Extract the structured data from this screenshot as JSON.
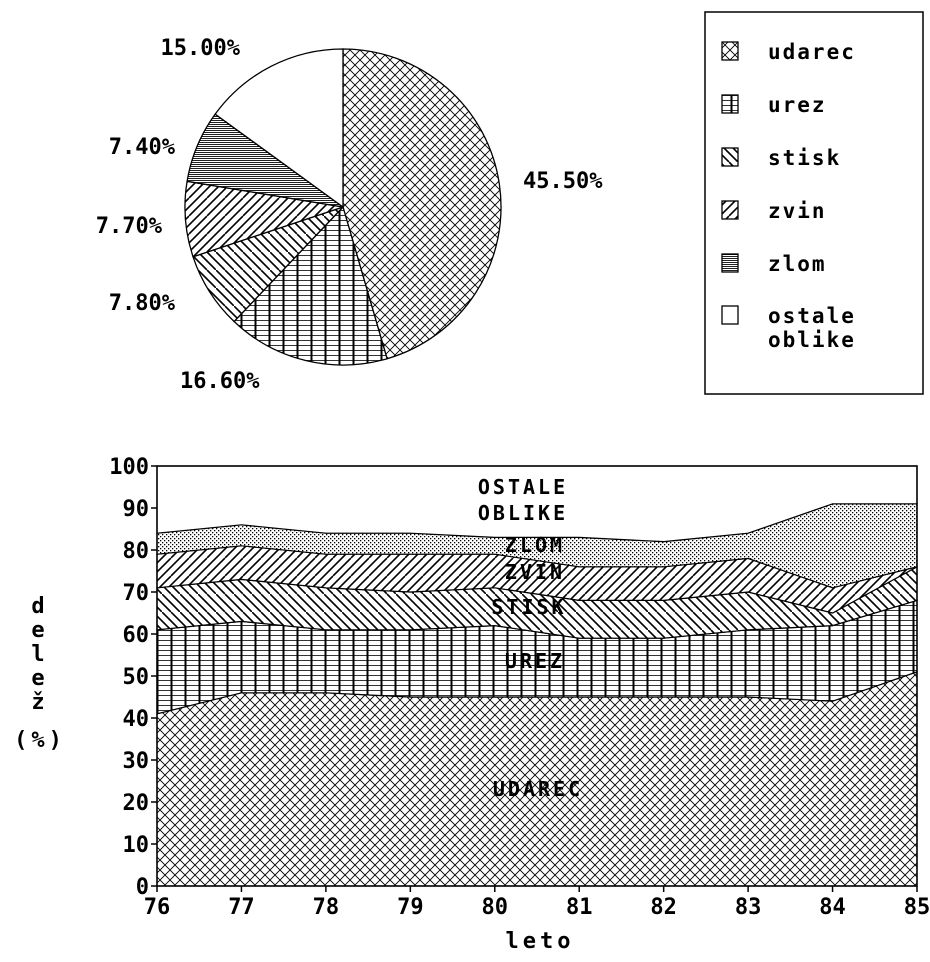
{
  "chart_data": [
    {
      "type": "pie",
      "slices": [
        {
          "name": "udarec",
          "value": 45.5,
          "label": "45.50%"
        },
        {
          "name": "urez",
          "value": 16.6,
          "label": "16.60%"
        },
        {
          "name": "stisk",
          "value": 7.8,
          "label": "7.80%"
        },
        {
          "name": "zvin",
          "value": 7.7,
          "label": "7.70%"
        },
        {
          "name": "zlom",
          "value": 7.4,
          "label": "7.40%"
        },
        {
          "name": "ostale oblike",
          "value": 15.0,
          "label": "15.00%"
        }
      ]
    },
    {
      "type": "area",
      "stacked": true,
      "x": [
        76,
        77,
        78,
        79,
        80,
        81,
        82,
        83,
        84,
        85
      ],
      "xticks": [
        "76",
        "77",
        "78",
        "79",
        "80",
        "81",
        "82",
        "83",
        "84",
        "85"
      ],
      "yticks": [
        "0",
        "10",
        "20",
        "30",
        "40",
        "50",
        "60",
        "70",
        "80",
        "90",
        "100"
      ],
      "ylim": [
        0,
        100
      ],
      "xlim": [
        76,
        85
      ],
      "xlabel": "leto",
      "ylabel_lines": [
        "d",
        "e",
        "l",
        "e",
        "ž",
        "(%)"
      ],
      "series": [
        {
          "name": "UDAREC",
          "values": [
            41,
            46,
            46,
            45,
            45,
            45,
            45,
            45,
            44,
            51
          ]
        },
        {
          "name": "UREZ",
          "values": [
            20,
            17,
            15,
            16,
            17,
            14,
            14,
            16,
            18,
            17
          ]
        },
        {
          "name": "STISK",
          "values": [
            10,
            10,
            10,
            9,
            9,
            9,
            9,
            9,
            3,
            8
          ]
        },
        {
          "name": "ZVIN",
          "values": [
            8,
            8,
            8,
            9,
            8,
            8,
            8,
            8,
            6,
            0
          ]
        },
        {
          "name": "ZLOM",
          "values": [
            5,
            5,
            5,
            5,
            4,
            7,
            6,
            6,
            20,
            15
          ]
        },
        {
          "name": "OSTALE OBLIKE",
          "values": [
            16,
            14,
            16,
            16,
            17,
            17,
            18,
            16,
            9,
            9
          ]
        }
      ],
      "area_labels": {
        "udarec": "UDAREC",
        "urez": "UREZ",
        "stisk": "STISK",
        "zvin": "ZVIN",
        "zlom": "ZLOM",
        "ostale_1": "OSTALE",
        "ostale_2": "OBLIKE"
      }
    }
  ],
  "legend": {
    "items": [
      {
        "label": "udarec"
      },
      {
        "label": "urez"
      },
      {
        "label": "stisk"
      },
      {
        "label": "zvin"
      },
      {
        "label": "zlom"
      },
      {
        "label": "ostale",
        "label2": "oblike"
      }
    ]
  }
}
